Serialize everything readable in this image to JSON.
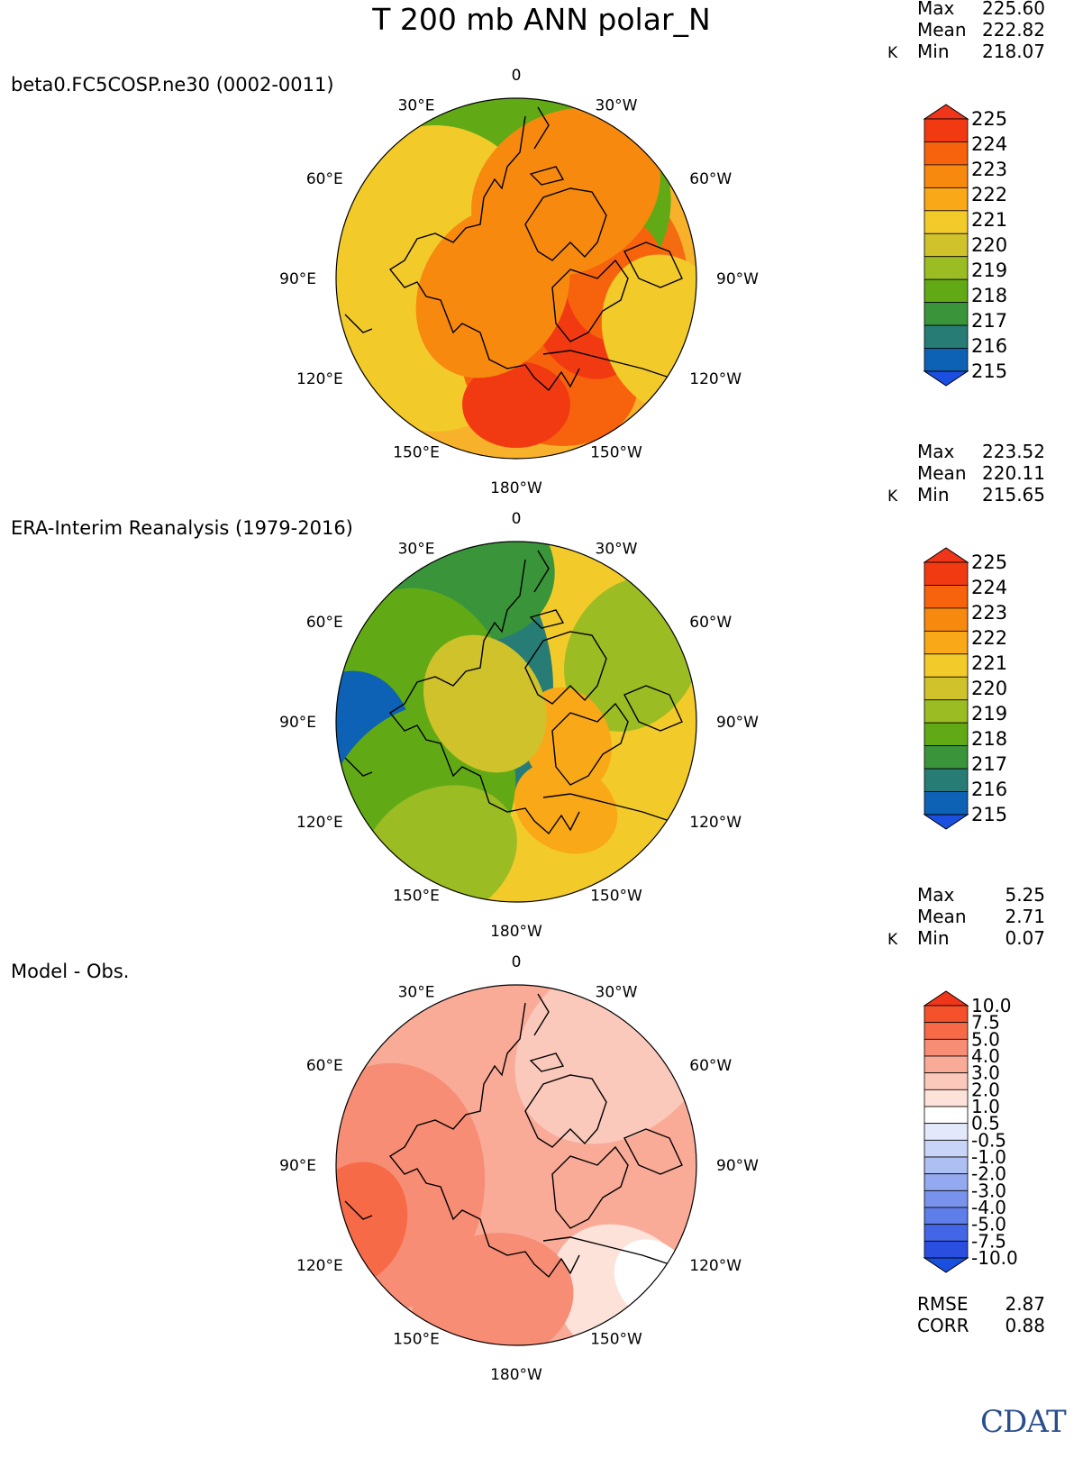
{
  "title": "T 200 mb ANN polar_N",
  "colors": {
    "land_outline": "#000000",
    "background": "#ffffff"
  },
  "chart_data": [
    {
      "type": "heatmap",
      "projection": "north polar stereographic",
      "title": "beta0.FC5COSP.ne30 (0002-0011)",
      "units": "K",
      "stats": {
        "max_label": "Max",
        "mean_label": "Mean",
        "min_label": "Min",
        "max": "225.60",
        "mean": "222.82",
        "min": "218.07"
      },
      "lon_labels": [
        "0",
        "30°E",
        "30°W",
        "60°E",
        "60°W",
        "90°E",
        "90°W",
        "120°E",
        "120°W",
        "150°E",
        "150°W",
        "180°W"
      ],
      "colorbar": {
        "levels": [
          "225",
          "224",
          "223",
          "222",
          "221",
          "220",
          "219",
          "218",
          "217",
          "216",
          "215"
        ],
        "colors": [
          "#f23a12",
          "#f7630c",
          "#f7890f",
          "#f9a818",
          "#f2cb2a",
          "#cfc22b",
          "#9cbc23",
          "#62aa15",
          "#3a943a",
          "#287c76",
          "#0d62b5"
        ],
        "over_color": "#f0361a",
        "under_color": "#1a4fe0"
      },
      "field": {
        "base": "#f7b12a",
        "patches": [
          {
            "lon": 180,
            "r": 0.95,
            "dx": 0.0,
            "color": "#f56b12"
          },
          {
            "lon": 20,
            "r": 0.92,
            "dx": 0.85,
            "color": "#9cbc23"
          },
          {
            "lon": 60,
            "r": 0.92,
            "dx": 0.55,
            "color": "#cfc22b"
          },
          {
            "lon": 10,
            "r": 0.95,
            "dx": 0.5,
            "color": "#62aa15"
          },
          {
            "lon": 90,
            "r": 0.85,
            "dx": 0.45,
            "color": "#f2cb2a"
          },
          {
            "lon": 200,
            "r": 0.5,
            "dx": 0.55,
            "color": "#f7630c"
          },
          {
            "lon": 240,
            "r": 0.35,
            "dx": 0.45,
            "color": "#f23a12"
          },
          {
            "lon": 270,
            "r": 0.35,
            "dx": 0.55,
            "color": "#f7630c"
          },
          {
            "lon": 180,
            "r": 0.3,
            "dx": 0.7,
            "color": "#f23a12"
          },
          {
            "lon": 330,
            "r": 0.55,
            "dx": 0.55,
            "color": "#f7890f"
          },
          {
            "lon": 120,
            "r": 0.5,
            "dx": 0.15,
            "color": "#f7890f"
          },
          {
            "lon": 250,
            "r": 0.45,
            "dx": 0.9,
            "color": "#f2cb2a"
          }
        ]
      }
    },
    {
      "type": "heatmap",
      "projection": "north polar stereographic",
      "title": "ERA-Interim Reanalysis (1979-2016)",
      "units": "K",
      "stats": {
        "max_label": "Max",
        "mean_label": "Mean",
        "min_label": "Min",
        "max": "223.52",
        "mean": "220.11",
        "min": "215.65"
      },
      "lon_labels": [
        "0",
        "30°E",
        "30°W",
        "60°E",
        "60°W",
        "90°E",
        "90°W",
        "120°E",
        "120°W",
        "150°E",
        "150°W",
        "180°W"
      ],
      "colorbar": {
        "levels": [
          "225",
          "224",
          "223",
          "222",
          "221",
          "220",
          "219",
          "218",
          "217",
          "216",
          "215"
        ],
        "colors": [
          "#f23a12",
          "#f7630c",
          "#f7890f",
          "#f9a818",
          "#f2cb2a",
          "#cfc22b",
          "#9cbc23",
          "#62aa15",
          "#3a943a",
          "#287c76",
          "#0d62b5"
        ],
        "over_color": "#f0361a",
        "under_color": "#1a4fe0"
      },
      "field": {
        "base": "#f2cb2a",
        "patches": [
          {
            "lon": 60,
            "r": 1.0,
            "dx": 0.75,
            "color": "#287c76"
          },
          {
            "lon": 20,
            "r": 0.55,
            "dx": 0.95,
            "color": "#3a943a"
          },
          {
            "lon": 80,
            "r": 0.65,
            "dx": 0.55,
            "color": "#62aa15"
          },
          {
            "lon": 100,
            "r": 0.45,
            "dx": 0.95,
            "color": "#0d62b5"
          },
          {
            "lon": 130,
            "r": 0.6,
            "dx": 0.7,
            "color": "#62aa15"
          },
          {
            "lon": 150,
            "r": 0.45,
            "dx": 0.85,
            "color": "#9cbc23"
          },
          {
            "lon": 300,
            "r": 0.45,
            "dx": 0.75,
            "color": "#9cbc23"
          },
          {
            "lon": 250,
            "r": 0.3,
            "dx": 0.3,
            "color": "#f9a818"
          },
          {
            "lon": 210,
            "r": 0.3,
            "dx": 0.55,
            "color": "#f9a818"
          },
          {
            "lon": 60,
            "r": 0.4,
            "dx": 0.2,
            "color": "#cfc22b"
          }
        ]
      }
    },
    {
      "type": "heatmap",
      "projection": "north polar stereographic",
      "title": "Model - Obs.",
      "units": "K",
      "stats": {
        "max_label": "Max",
        "mean_label": "Mean",
        "min_label": "Min",
        "max": "5.25",
        "mean": "2.71",
        "min": "0.07"
      },
      "lon_labels": [
        "0",
        "30°E",
        "30°W",
        "60°E",
        "60°W",
        "90°E",
        "90°W",
        "120°E",
        "120°W",
        "150°E",
        "150°W",
        "180°W"
      ],
      "colorbar": {
        "levels": [
          "10.0",
          "7.5",
          "5.0",
          "4.0",
          "3.0",
          "2.0",
          "1.0",
          "0.5",
          "-0.5",
          "-1.0",
          "-2.0",
          "-3.0",
          "-4.0",
          "-5.0",
          "-7.5",
          "-10.0"
        ],
        "colors": [
          "#f5522b",
          "#f76a47",
          "#f88d75",
          "#f9ab98",
          "#fbc9bb",
          "#fde2d9",
          "#ffffff",
          "#e3e9fb",
          "#c9d5f8",
          "#aebff4",
          "#94a9f0",
          "#7993ec",
          "#5e7ee9",
          "#4266e6",
          "#2a4fe0"
        ],
        "over_color": "#f0361a",
        "under_color": "#1a4fe0"
      },
      "field": {
        "base": "#f9ab98",
        "patches": [
          {
            "lon": 100,
            "r": 0.7,
            "dx": 0.75,
            "color": "#f88d75"
          },
          {
            "lon": 110,
            "r": 0.35,
            "dx": 0.95,
            "color": "#f76a47"
          },
          {
            "lon": 320,
            "r": 0.6,
            "dx": 0.85,
            "color": "#fbc9bb"
          },
          {
            "lon": 220,
            "r": 0.45,
            "dx": 0.95,
            "color": "#fde2d9"
          },
          {
            "lon": 230,
            "r": 0.25,
            "dx": 1.0,
            "color": "#ffffff"
          },
          {
            "lon": 170,
            "r": 0.45,
            "dx": 0.75,
            "color": "#f88d75"
          }
        ]
      },
      "extra_stats": {
        "rmse_label": "RMSE",
        "rmse": "2.87",
        "corr_label": "CORR",
        "corr": "0.88"
      }
    }
  ],
  "logo": {
    "text": "CDAT"
  }
}
